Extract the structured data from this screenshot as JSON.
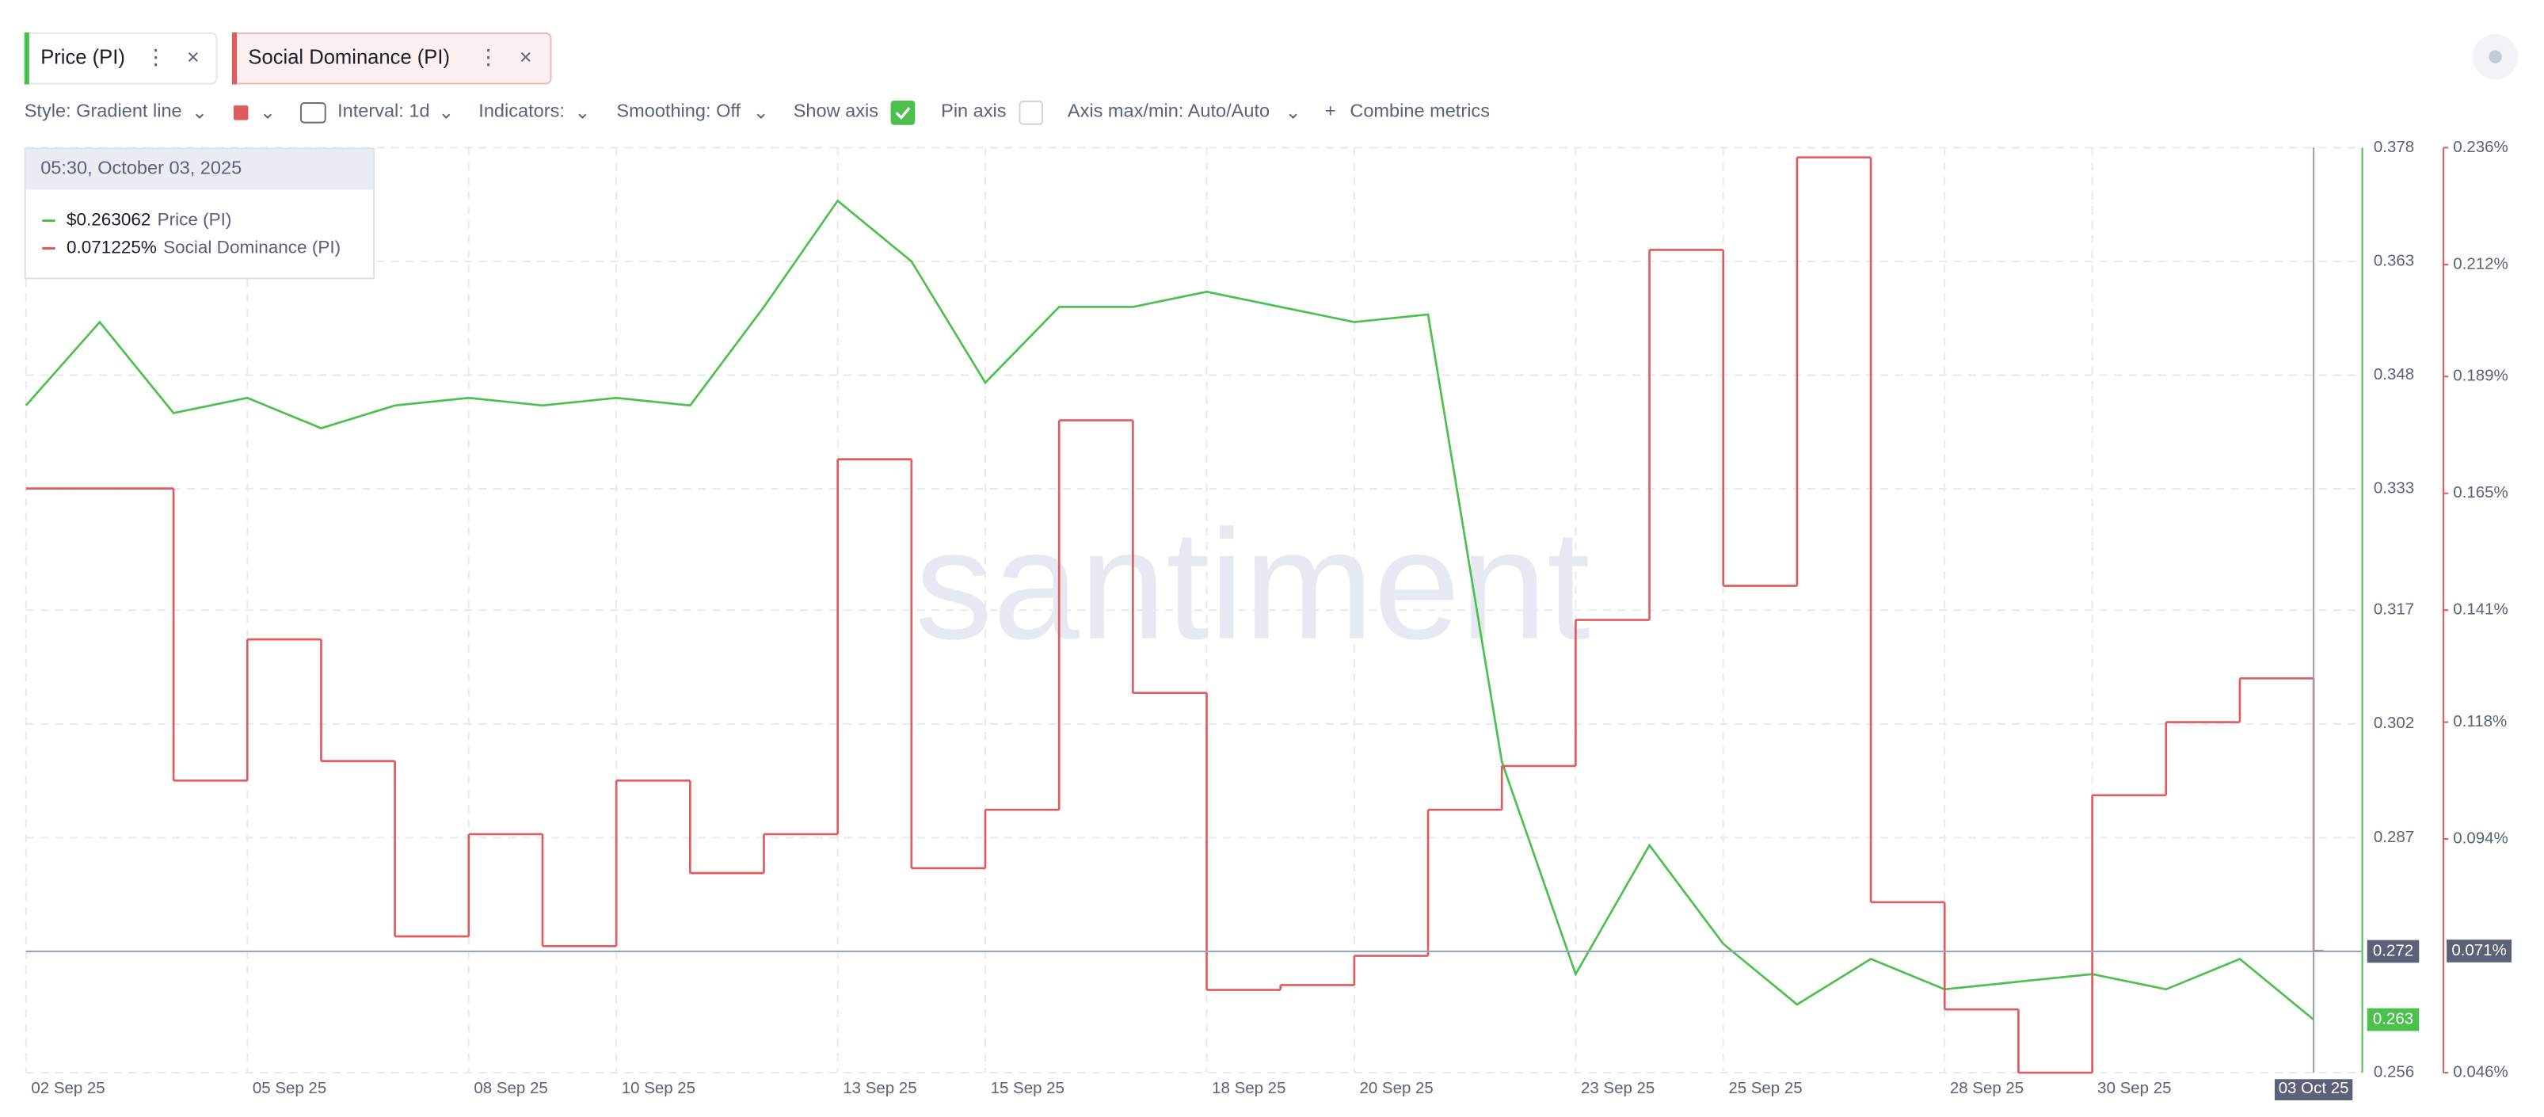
{
  "toolbar": {
    "style": "Style: Gradient line",
    "interval": "Interval: 1d",
    "indicators": "Indicators:",
    "smoothing": "Smoothing: Off",
    "show_axis": "Show axis",
    "pin_axis": "Pin axis",
    "axis_maxmin": "Axis max/min: Auto/Auto",
    "combine": "Combine metrics"
  },
  "watermark": "santiment",
  "tooltip": {
    "time": "05:30, October 03, 2025",
    "items": [
      {
        "value_label": "$0.263062"
      },
      {
        "value_label": "0.071225%"
      }
    ]
  },
  "chart_data": {
    "type": "line",
    "x": [
      "02 Sep 25",
      "03 Sep 25",
      "04 Sep 25",
      "05 Sep 25",
      "06 Sep 25",
      "07 Sep 25",
      "08 Sep 25",
      "09 Sep 25",
      "10 Sep 25",
      "11 Sep 25",
      "12 Sep 25",
      "13 Sep 25",
      "14 Sep 25",
      "15 Sep 25",
      "16 Sep 25",
      "17 Sep 25",
      "18 Sep 25",
      "19 Sep 25",
      "20 Sep 25",
      "21 Sep 25",
      "22 Sep 25",
      "23 Sep 25",
      "24 Sep 25",
      "25 Sep 25",
      "26 Sep 25",
      "27 Sep 25",
      "28 Sep 25",
      "29 Sep 25",
      "30 Sep 25",
      "01 Oct 25",
      "02 Oct 25",
      "03 Oct 25"
    ],
    "xticks": [
      "02 Sep 25",
      "05 Sep 25",
      "08 Sep 25",
      "10 Sep 25",
      "13 Sep 25",
      "15 Sep 25",
      "18 Sep 25",
      "20 Sep 25",
      "23 Sep 25",
      "25 Sep 25",
      "28 Sep 25",
      "30 Sep 25",
      "03 Oct 25"
    ],
    "series": [
      {
        "name": "Price (PI)",
        "color": "#4cc04c",
        "values": [
          0.344,
          0.355,
          0.343,
          0.345,
          0.341,
          0.344,
          0.345,
          0.344,
          0.345,
          0.344,
          0.357,
          0.371,
          0.363,
          0.347,
          0.357,
          0.357,
          0.359,
          0.357,
          0.355,
          0.356,
          0.297,
          0.269,
          0.286,
          0.273,
          0.265,
          0.271,
          0.267,
          0.268,
          0.269,
          0.267,
          0.271,
          0.263
        ]
      },
      {
        "name": "Social Dominance (PI)",
        "color": "#e05b5b",
        "axis": "y2",
        "step": true,
        "values": [
          0.166,
          0.166,
          0.106,
          0.135,
          0.11,
          0.074,
          0.095,
          0.072,
          0.106,
          0.087,
          0.095,
          0.172,
          0.088,
          0.1,
          0.18,
          0.124,
          0.063,
          0.064,
          0.07,
          0.1,
          0.109,
          0.139,
          0.215,
          0.146,
          0.234,
          0.081,
          0.059,
          0.046,
          0.103,
          0.118,
          0.127,
          0.071
        ]
      }
    ],
    "ylim": [
      0.256,
      0.378
    ],
    "yticks": [
      0.256,
      0.287,
      0.302,
      0.317,
      0.333,
      0.348,
      0.363,
      0.378
    ],
    "y2lim": [
      0.046,
      0.236
    ],
    "y2ticks": [
      {
        "value": 0.046,
        "label": "0.046%"
      },
      {
        "value": 0.094,
        "label": "0.094%"
      },
      {
        "value": 0.118,
        "label": "0.118%"
      },
      {
        "value": 0.141,
        "label": "0.141%"
      },
      {
        "value": 0.165,
        "label": "0.165%"
      },
      {
        "value": 0.189,
        "label": "0.189%"
      },
      {
        "value": 0.212,
        "label": "0.212%"
      },
      {
        "value": 0.236,
        "label": "0.236%"
      }
    ],
    "crosshair": {
      "y": 0.272,
      "y2": {
        "value": 0.071,
        "label": "0.071%"
      }
    },
    "grid": true
  }
}
